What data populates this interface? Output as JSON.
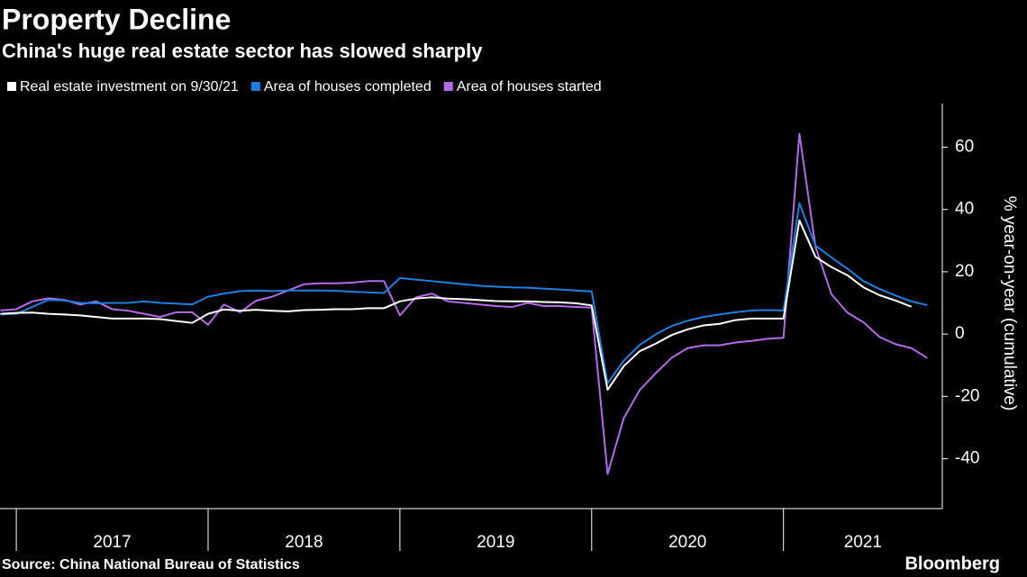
{
  "chart_data": {
    "type": "line",
    "title": "Property Decline",
    "subtitle": "China's huge real estate sector has slowed sharply",
    "y_label": "% year-on-year (cumulative)",
    "source": "Source: China National Bureau of Statistics",
    "brand": "Bloomberg",
    "x": [
      2016.917,
      2017.0,
      2017.083,
      2017.167,
      2017.25,
      2017.333,
      2017.417,
      2017.5,
      2017.583,
      2017.667,
      2017.75,
      2017.833,
      2017.917,
      2018.0,
      2018.083,
      2018.167,
      2018.25,
      2018.333,
      2018.417,
      2018.5,
      2018.583,
      2018.667,
      2018.75,
      2018.833,
      2018.917,
      2019.0,
      2019.083,
      2019.167,
      2019.25,
      2019.333,
      2019.417,
      2019.5,
      2019.583,
      2019.667,
      2019.75,
      2019.833,
      2019.917,
      2020.0,
      2020.083,
      2020.167,
      2020.25,
      2020.333,
      2020.417,
      2020.5,
      2020.583,
      2020.667,
      2020.75,
      2020.833,
      2020.917,
      2021.0,
      2021.083,
      2021.167,
      2021.25,
      2021.333,
      2021.417,
      2021.5,
      2021.583,
      2021.667,
      2021.75
    ],
    "series": [
      {
        "name": "Real estate investment on 9/30/21",
        "color": "#ffffff",
        "values": [
          6.5,
          6.8,
          6.9,
          6.5,
          6.3,
          6.0,
          5.5,
          5.0,
          5.0,
          5.0,
          4.8,
          4.2,
          3.6,
          6.5,
          7.9,
          7.5,
          7.8,
          7.5,
          7.3,
          7.7,
          7.8,
          8.0,
          8.0,
          8.3,
          8.3,
          10.5,
          11.4,
          11.8,
          11.4,
          11.2,
          10.9,
          10.6,
          10.5,
          10.5,
          10.3,
          10.2,
          9.9,
          9.2,
          -17.9,
          -10.3,
          -5.5,
          -3.1,
          -0.3,
          1.5,
          2.8,
          3.3,
          4.5,
          5.0,
          5.0,
          5.0,
          36.5,
          24.8,
          21.5,
          18.9,
          15.0,
          12.5,
          10.8,
          8.8,
          null
        ]
      },
      {
        "name": "Area of houses completed",
        "color": "#1f7fe0",
        "values": [
          6.3,
          6.5,
          8.7,
          11.0,
          10.8,
          10.0,
          9.9,
          10.0,
          10.0,
          10.5,
          10.0,
          9.8,
          9.5,
          12.0,
          13.0,
          13.8,
          14.0,
          13.8,
          14.0,
          14.0,
          14.0,
          13.9,
          13.6,
          13.4,
          13.2,
          18.0,
          17.5,
          17.0,
          16.5,
          16.0,
          15.5,
          15.2,
          15.0,
          14.9,
          14.6,
          14.3,
          14.0,
          13.7,
          -15.8,
          -8.5,
          -3.5,
          -0.1,
          2.6,
          4.3,
          5.5,
          6.3,
          7.0,
          7.6,
          7.7,
          7.6,
          42.0,
          28.4,
          24.6,
          21.0,
          17.0,
          14.5,
          12.4,
          10.5,
          9.3
        ]
      },
      {
        "name": "Area of houses started",
        "color": "#b36be8",
        "values": [
          7.6,
          8.0,
          10.5,
          11.5,
          11.0,
          9.5,
          10.5,
          8.0,
          7.5,
          6.5,
          5.5,
          7.0,
          7.0,
          3.0,
          9.5,
          7.0,
          10.7,
          12.0,
          14.0,
          16.0,
          16.3,
          16.3,
          16.5,
          17.0,
          17.0,
          6.0,
          11.8,
          13.0,
          10.5,
          10.0,
          9.5,
          9.0,
          8.7,
          10.0,
          9.0,
          9.0,
          8.7,
          8.5,
          -44.9,
          -27.0,
          -18.0,
          -12.6,
          -7.6,
          -4.5,
          -3.6,
          -3.6,
          -2.7,
          -2.2,
          -1.5,
          -1.2,
          64.3,
          28.0,
          12.8,
          6.9,
          3.8,
          -0.9,
          -3.2,
          -4.5,
          -7.7
        ]
      }
    ],
    "xlim": [
      2016.915,
      2021.8
    ],
    "xticks": [
      2017,
      2018,
      2019,
      2020,
      2021
    ],
    "ylim": [
      -56,
      74
    ],
    "yticks": [
      -40,
      -20,
      0,
      20,
      40,
      60
    ],
    "grid": false,
    "background": "#000000"
  }
}
